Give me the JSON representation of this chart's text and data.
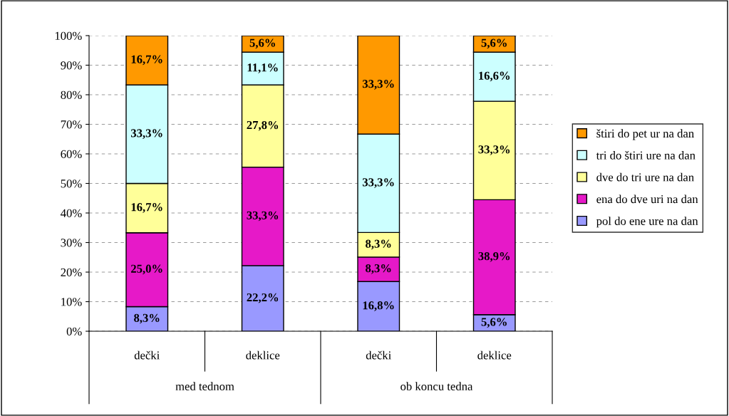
{
  "chart_data": {
    "type": "bar",
    "stacked": true,
    "categories": [
      "dečki",
      "deklice",
      "dečki",
      "deklice"
    ],
    "annotations": [
      "med tednom",
      "ob koncu tedna"
    ],
    "series": [
      {
        "name": "pol do ene ure na dan",
        "color": "#9999ff",
        "values": [
          8.3,
          22.2,
          16.8,
          5.6
        ],
        "value_labels": [
          "8,3%",
          "22,2%",
          "16,8%",
          "5,6%"
        ]
      },
      {
        "name": "ena do dve uri na dan",
        "color": "#e619c8",
        "values": [
          25.0,
          33.3,
          8.3,
          38.9
        ],
        "value_labels": [
          "25,0%",
          "33,3%",
          "8,3%",
          "38,9%"
        ]
      },
      {
        "name": "dve do tri ure na dan",
        "color": "#ffff99",
        "values": [
          16.7,
          27.8,
          8.3,
          33.3
        ],
        "value_labels": [
          "16,7%",
          "27,8%",
          "8,3%",
          "33,3%"
        ]
      },
      {
        "name": "tri do štiri ure na dan",
        "color": "#ccffff",
        "values": [
          33.3,
          11.1,
          33.3,
          16.6
        ],
        "value_labels": [
          "33,3%",
          "11,1%",
          "33,3%",
          "16,6%"
        ]
      },
      {
        "name": "štiri do pet ur na dan",
        "color": "#ff9900",
        "values": [
          16.7,
          5.6,
          33.3,
          5.6
        ],
        "value_labels": [
          "16,7%",
          "5,6%",
          "33,3%",
          "5,6%"
        ]
      }
    ],
    "ylim": [
      0,
      100
    ],
    "yticks": [
      {
        "value": 0,
        "label": "0%"
      },
      {
        "value": 10,
        "label": "10%"
      },
      {
        "value": 20,
        "label": "20%"
      },
      {
        "value": 30,
        "label": "30%"
      },
      {
        "value": 40,
        "label": "40%"
      },
      {
        "value": 50,
        "label": "50%"
      },
      {
        "value": 60,
        "label": "60%"
      },
      {
        "value": 70,
        "label": "70%"
      },
      {
        "value": 80,
        "label": "80%"
      },
      {
        "value": 90,
        "label": "90%"
      },
      {
        "value": 100,
        "label": "100%"
      }
    ],
    "grid": "y",
    "legend": "right"
  }
}
